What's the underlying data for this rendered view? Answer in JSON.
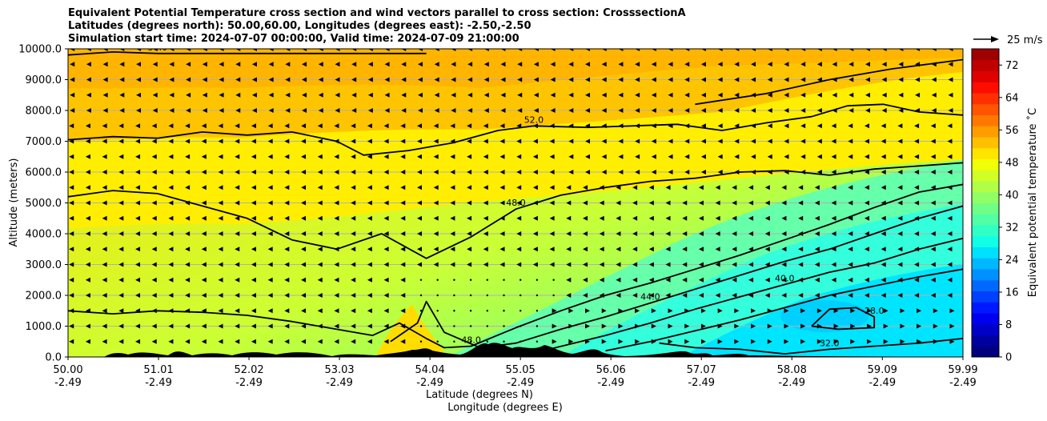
{
  "chart_data": {
    "type": "heatmap",
    "title_lines": [
      "Equivalent Potential Temperature cross section and wind vectors parallel to cross section: CrosssectionA",
      "Latitudes (degrees north): 50.00,60.00, Longitudes (degrees east): -2.50,-2.50",
      "Simulation start time: 2024-07-07 00:00:00, Valid time: 2024-07-09 21:00:00"
    ],
    "ylabel": "Altitude (meters)",
    "xlabel_lat": "Latitude (degrees N)",
    "xlabel_lon": "Longitude (degrees E)",
    "ylim": [
      0,
      10000
    ],
    "y_ticks": [
      "0.0",
      "1000.0",
      "2000.0",
      "3000.0",
      "4000.0",
      "5000.0",
      "6000.0",
      "7000.0",
      "8000.0",
      "9000.0",
      "10000.0"
    ],
    "y_tick_values": [
      0,
      1000,
      2000,
      3000,
      4000,
      5000,
      6000,
      7000,
      8000,
      9000,
      10000
    ],
    "xlim": [
      50.0,
      59.99
    ],
    "x_ticks": [
      {
        "value": 50.0,
        "lat": "50.00",
        "lon": "-2.49"
      },
      {
        "value": 51.01,
        "lat": "51.01",
        "lon": "-2.49"
      },
      {
        "value": 52.02,
        "lat": "52.02",
        "lon": "-2.49"
      },
      {
        "value": 53.03,
        "lat": "53.03",
        "lon": "-2.49"
      },
      {
        "value": 54.04,
        "lat": "54.04",
        "lon": "-2.49"
      },
      {
        "value": 55.05,
        "lat": "55.05",
        "lon": "-2.49"
      },
      {
        "value": 56.06,
        "lat": "56.06",
        "lon": "-2.49"
      },
      {
        "value": 57.07,
        "lat": "57.07",
        "lon": "-2.49"
      },
      {
        "value": 58.08,
        "lat": "58.08",
        "lon": "-2.49"
      },
      {
        "value": 59.09,
        "lat": "59.09",
        "lon": "-2.49"
      },
      {
        "value": 59.99,
        "lat": "59.99",
        "lon": "-2.49"
      }
    ],
    "colorbar": {
      "label": "Equivalent potential temperature ˚C",
      "range": [
        0,
        76
      ],
      "ticks": [
        "0",
        "8",
        "16",
        "24",
        "32",
        "40",
        "48",
        "56",
        "64",
        "72"
      ],
      "tick_values": [
        0,
        8,
        16,
        24,
        32,
        40,
        48,
        56,
        64,
        72
      ]
    },
    "quiver_key": {
      "label": "25 m/s"
    },
    "field_description": "Equivalent potential temperature (approx. 28-56 C) with cool moist air (28-36 C) at low levels in the north and warm (52-56 C) air aloft.",
    "contours": [
      {
        "level": 52.0,
        "label": "52.0",
        "points": [
          [
            50.0,
            7050
          ],
          [
            50.5,
            7150
          ],
          [
            51.0,
            7100
          ],
          [
            51.5,
            7300
          ],
          [
            52.0,
            7200
          ],
          [
            52.5,
            7300
          ],
          [
            53.0,
            7000
          ],
          [
            53.3,
            6550
          ],
          [
            53.8,
            6700
          ],
          [
            54.3,
            6950
          ],
          [
            54.8,
            7350
          ],
          [
            55.2,
            7500
          ],
          [
            55.8,
            7450
          ],
          [
            56.3,
            7500
          ],
          [
            56.8,
            7550
          ],
          [
            57.3,
            7350
          ],
          [
            57.8,
            7600
          ],
          [
            58.3,
            7800
          ],
          [
            58.7,
            8150
          ],
          [
            59.1,
            8200
          ],
          [
            59.5,
            7950
          ],
          [
            59.99,
            7850
          ]
        ]
      },
      {
        "level": 56.0,
        "label": "56.0",
        "points": [
          [
            50.0,
            9800
          ],
          [
            50.5,
            9900
          ],
          [
            51.0,
            9850
          ],
          [
            54.0,
            9850
          ]
        ]
      },
      {
        "level": 56.0,
        "label": "",
        "points": [
          [
            57.0,
            8200
          ],
          [
            57.8,
            8550
          ],
          [
            58.5,
            9000
          ],
          [
            59.2,
            9350
          ],
          [
            59.99,
            9650
          ]
        ]
      },
      {
        "level": 48.0,
        "label": "48.0",
        "points": [
          [
            50.0,
            5200
          ],
          [
            50.5,
            5400
          ],
          [
            51.0,
            5300
          ],
          [
            51.5,
            4900
          ],
          [
            52.0,
            4500
          ],
          [
            52.5,
            3800
          ],
          [
            53.0,
            3500
          ],
          [
            53.5,
            4000
          ],
          [
            54.0,
            3200
          ],
          [
            54.5,
            3900
          ],
          [
            55.0,
            4800
          ],
          [
            55.5,
            5250
          ],
          [
            56.0,
            5500
          ],
          [
            56.5,
            5700
          ],
          [
            57.0,
            5800
          ],
          [
            57.5,
            6000
          ],
          [
            58.0,
            6050
          ],
          [
            58.5,
            5900
          ],
          [
            59.0,
            6100
          ],
          [
            59.5,
            6200
          ],
          [
            59.99,
            6300
          ]
        ]
      },
      {
        "level": 48.0,
        "label": "48.0",
        "points": [
          [
            50.0,
            1500
          ],
          [
            50.5,
            1400
          ],
          [
            51.0,
            1500
          ],
          [
            51.5,
            1450
          ],
          [
            52.0,
            1350
          ],
          [
            52.5,
            1150
          ],
          [
            53.0,
            900
          ],
          [
            53.4,
            700
          ],
          [
            53.7,
            1100
          ],
          [
            54.0,
            600
          ],
          [
            54.2,
            300
          ],
          [
            54.5,
            350
          ],
          [
            55.0,
            950
          ],
          [
            55.5,
            1500
          ],
          [
            56.0,
            2000
          ],
          [
            56.5,
            2400
          ],
          [
            57.0,
            2850
          ],
          [
            57.5,
            3300
          ],
          [
            58.0,
            3800
          ],
          [
            58.5,
            4300
          ],
          [
            59.0,
            4850
          ],
          [
            59.5,
            5350
          ],
          [
            59.99,
            5600
          ]
        ]
      },
      {
        "level": 44.0,
        "label": "44.0",
        "points": [
          [
            53.6,
            500
          ],
          [
            53.9,
            1100
          ],
          [
            54.0,
            1800
          ],
          [
            54.2,
            800
          ],
          [
            54.6,
            300
          ],
          [
            55.0,
            450
          ],
          [
            55.5,
            900
          ],
          [
            56.0,
            1300
          ],
          [
            56.5,
            1750
          ],
          [
            57.0,
            2200
          ],
          [
            57.5,
            2650
          ],
          [
            58.0,
            3100
          ],
          [
            58.5,
            3500
          ],
          [
            59.0,
            4000
          ],
          [
            59.5,
            4500
          ],
          [
            59.99,
            4900
          ]
        ]
      },
      {
        "level": 40.0,
        "label": "40.0",
        "points": [
          [
            55.3,
            200
          ],
          [
            56.0,
            700
          ],
          [
            56.5,
            1100
          ],
          [
            57.0,
            1550
          ],
          [
            57.5,
            1950
          ],
          [
            58.0,
            2350
          ],
          [
            58.5,
            2750
          ],
          [
            59.0,
            3050
          ],
          [
            59.5,
            3500
          ],
          [
            59.99,
            3850
          ]
        ]
      },
      {
        "level": 36.0,
        "label": "",
        "points": [
          [
            56.0,
            200
          ],
          [
            56.5,
            500
          ],
          [
            57.0,
            850
          ],
          [
            57.5,
            1200
          ],
          [
            58.0,
            1600
          ],
          [
            58.5,
            2000
          ],
          [
            59.0,
            2300
          ],
          [
            59.5,
            2600
          ],
          [
            59.99,
            2850
          ]
        ]
      },
      {
        "level": 32.0,
        "label": "32.0",
        "points": [
          [
            56.6,
            450
          ],
          [
            57.0,
            300
          ],
          [
            57.5,
            250
          ],
          [
            58.0,
            100
          ],
          [
            58.5,
            250
          ],
          [
            59.0,
            350
          ],
          [
            59.5,
            450
          ],
          [
            59.99,
            600
          ]
        ]
      },
      {
        "level": 28.0,
        "label": "28.0",
        "points": [
          [
            58.3,
            1000
          ],
          [
            58.5,
            1550
          ],
          [
            58.8,
            1600
          ],
          [
            59.0,
            1300
          ],
          [
            59.0,
            950
          ],
          [
            58.6,
            900
          ],
          [
            58.3,
            1000
          ]
        ]
      }
    ]
  }
}
